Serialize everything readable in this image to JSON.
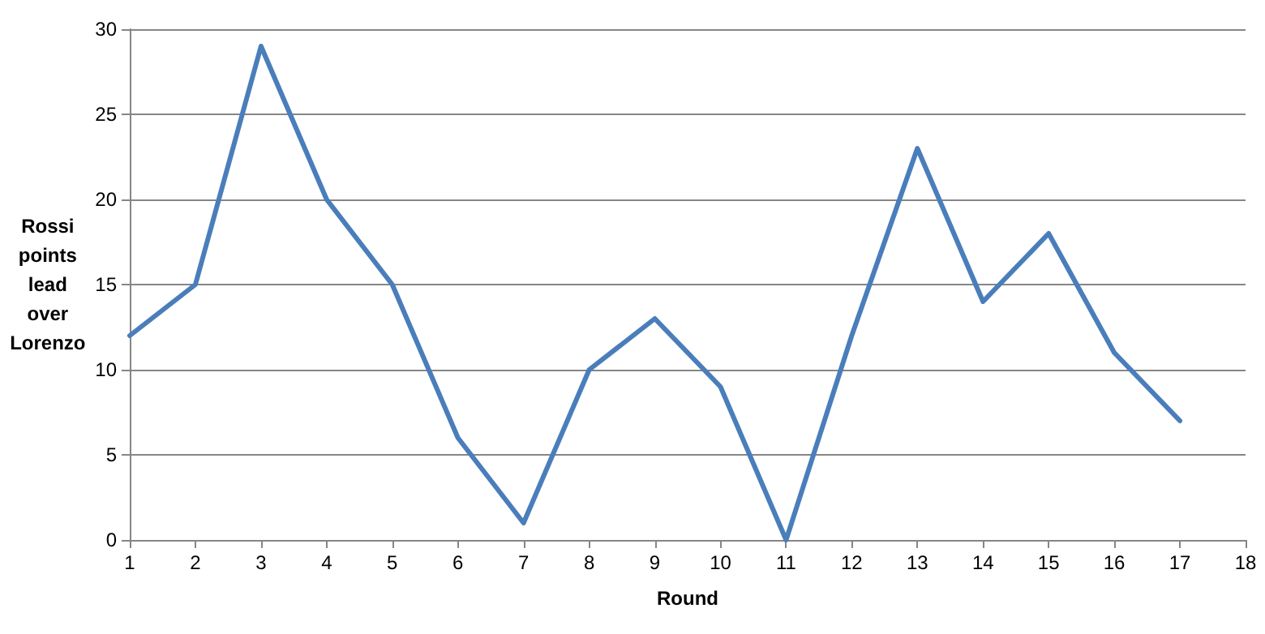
{
  "chart_data": {
    "type": "line",
    "xlabel": "Round",
    "ylabel": "Rossi points lead over Lorenzo",
    "x": [
      1,
      2,
      3,
      4,
      5,
      6,
      7,
      8,
      9,
      10,
      11,
      12,
      13,
      14,
      15,
      16,
      17
    ],
    "series": [
      {
        "color": "#4a7ebb",
        "values": [
          12,
          15,
          29,
          20,
          15,
          6,
          1,
          10,
          13,
          9,
          0,
          12,
          23,
          14,
          18,
          11,
          7
        ]
      }
    ],
    "xlim": [
      1,
      18
    ],
    "xticks": [
      1,
      2,
      3,
      4,
      5,
      6,
      7,
      8,
      9,
      10,
      11,
      12,
      13,
      14,
      15,
      16,
      17,
      18
    ],
    "ylim": [
      0,
      30
    ],
    "yticks": [
      0,
      5,
      10,
      15,
      20,
      25,
      30
    ],
    "grid": "y",
    "marker": "none",
    "line_style": "solid"
  }
}
